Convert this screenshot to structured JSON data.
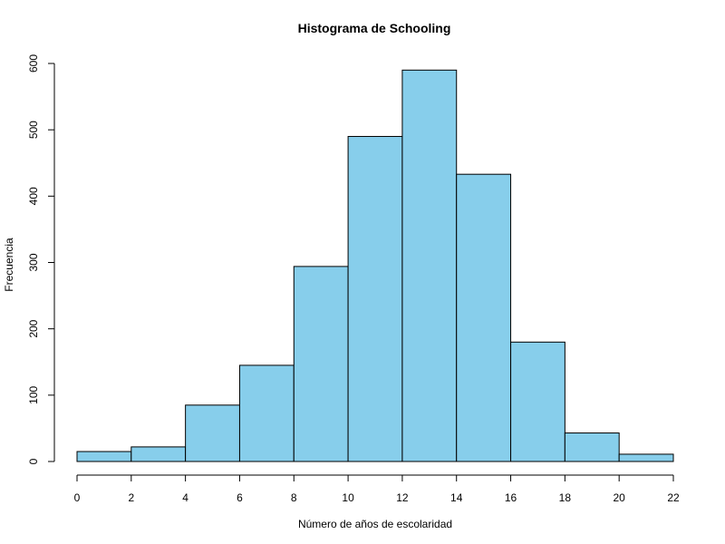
{
  "chart_data": {
    "type": "bar",
    "title": "Histograma de Schooling",
    "xlabel": "Número de años de escolaridad",
    "ylabel": "Frecuencia",
    "bins": [
      [
        0,
        2
      ],
      [
        2,
        4
      ],
      [
        4,
        6
      ],
      [
        6,
        8
      ],
      [
        8,
        10
      ],
      [
        10,
        12
      ],
      [
        12,
        14
      ],
      [
        14,
        16
      ],
      [
        16,
        18
      ],
      [
        18,
        20
      ],
      [
        20,
        22
      ]
    ],
    "values": [
      15,
      22,
      85,
      145,
      294,
      490,
      590,
      433,
      180,
      43,
      11
    ],
    "xlim": [
      0,
      22
    ],
    "ylim": [
      0,
      600
    ],
    "xticks": [
      0,
      2,
      4,
      6,
      8,
      10,
      12,
      14,
      16,
      18,
      20,
      22
    ],
    "yticks": [
      0,
      100,
      200,
      300,
      400,
      500,
      600
    ],
    "grid": false,
    "bar_color": "#87CEEB",
    "edge_color": "#000000"
  }
}
